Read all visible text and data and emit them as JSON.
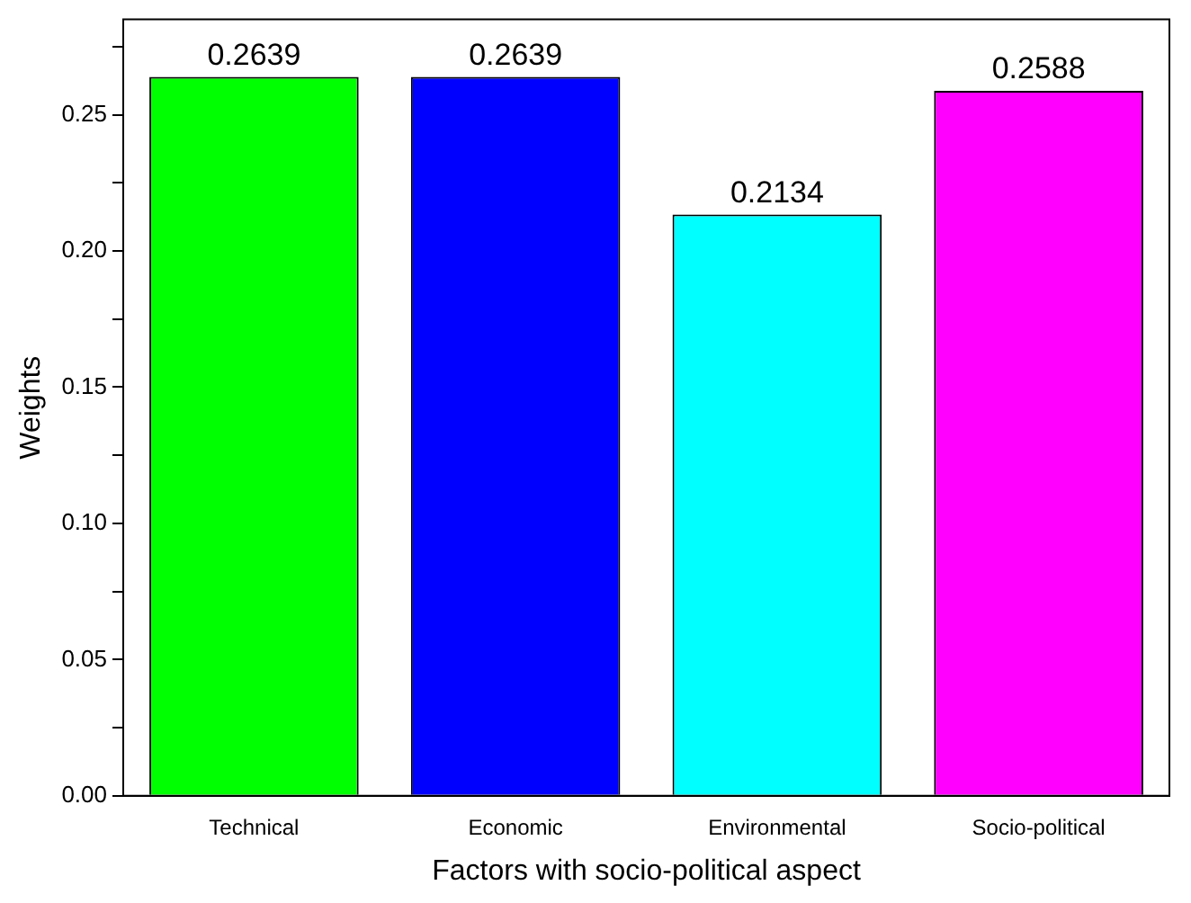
{
  "chart_data": {
    "type": "bar",
    "xlabel": "Factors with socio-political aspect",
    "ylabel": "Weights",
    "categories": [
      "Technical",
      "Economic",
      "Environmental",
      "Socio-political"
    ],
    "values": [
      0.2639,
      0.2639,
      0.2134,
      0.2588
    ],
    "colors": [
      "#00ff00",
      "#0000ff",
      "#00ffff",
      "#ff00ff"
    ],
    "ylim": [
      0,
      0.285
    ],
    "yticks": [
      {
        "value": 0,
        "label": "0.00"
      },
      {
        "value": 0.025,
        "label": null
      },
      0.05,
      {
        "value": 0.075,
        "label": null
      },
      {
        "value": 0.1,
        "label": "0.10"
      },
      {
        "value": 0.125,
        "label": null
      },
      0.15,
      {
        "value": 0.175,
        "label": null
      },
      {
        "value": 0.2,
        "label": "0.20"
      },
      {
        "value": 0.225,
        "label": null
      },
      0.25,
      {
        "value": 0.275,
        "label": null
      }
    ],
    "data_labels": true,
    "grid": false,
    "legend": false
  }
}
